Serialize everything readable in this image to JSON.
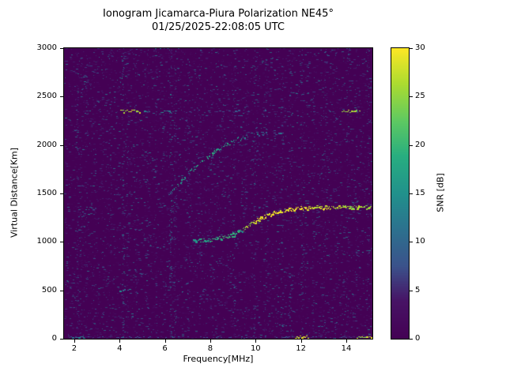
{
  "chart_data": {
    "type": "heatmap",
    "title": "Ionogram Jicamarca-Piura Polarization NE45°",
    "subtitle": "01/25/2025-22:08:05 UTC",
    "xlabel": "Frequency[MHz]",
    "ylabel": "Virtual Distance[Km]",
    "xlim": [
      1.55,
      15.15
    ],
    "ylim": [
      0,
      3000
    ],
    "xticks": [
      2,
      4,
      6,
      8,
      10,
      12,
      14
    ],
    "yticks": [
      0,
      500,
      1000,
      1500,
      2000,
      2500,
      3000
    ],
    "colorbar": {
      "label": "SNR [dB]",
      "min": 0,
      "max": 30,
      "ticks": [
        0,
        5,
        10,
        15,
        20,
        25,
        30
      ],
      "colormap": "viridis"
    },
    "background_snr": 0,
    "noise": {
      "speckle_count": 9500,
      "snr_low": 1,
      "snr_spread": 13
    },
    "noise_stripes": [
      {
        "freq": 2.15,
        "strength": 0.5
      },
      {
        "freq": 2.3,
        "strength": 0.3
      },
      {
        "freq": 2.55,
        "strength": 0.35
      },
      {
        "freq": 2.9,
        "strength": 0.25
      },
      {
        "freq": 3.25,
        "strength": 0.3
      },
      {
        "freq": 3.6,
        "strength": 0.25
      },
      {
        "freq": 4.15,
        "strength": 0.9
      },
      {
        "freq": 4.35,
        "strength": 0.5
      },
      {
        "freq": 4.7,
        "strength": 0.3
      },
      {
        "freq": 5.25,
        "strength": 0.35
      },
      {
        "freq": 5.6,
        "strength": 0.25
      },
      {
        "freq": 6.25,
        "strength": 1.0
      },
      {
        "freq": 6.45,
        "strength": 0.6
      },
      {
        "freq": 7.05,
        "strength": 0.4
      },
      {
        "freq": 7.55,
        "strength": 0.35
      },
      {
        "freq": 8.05,
        "strength": 0.3
      },
      {
        "freq": 8.55,
        "strength": 0.3
      },
      {
        "freq": 9.05,
        "strength": 0.5
      },
      {
        "freq": 9.55,
        "strength": 0.35
      },
      {
        "freq": 9.95,
        "strength": 0.5
      },
      {
        "freq": 10.45,
        "strength": 0.4
      },
      {
        "freq": 11.15,
        "strength": 0.5
      },
      {
        "freq": 11.55,
        "strength": 0.35
      },
      {
        "freq": 12.05,
        "strength": 0.5
      },
      {
        "freq": 12.55,
        "strength": 0.35
      },
      {
        "freq": 13.05,
        "strength": 0.45
      },
      {
        "freq": 13.55,
        "strength": 0.35
      },
      {
        "freq": 14.05,
        "strength": 0.4
      },
      {
        "freq": 14.45,
        "strength": 0.35
      },
      {
        "freq": 14.95,
        "strength": 0.55
      }
    ],
    "interference_lines": [
      {
        "y": 2350,
        "x1": 4.05,
        "x2": 4.95,
        "snr": 27,
        "density": 0.95
      },
      {
        "y": 2350,
        "x1": 5.1,
        "x2": 5.35,
        "snr": 12,
        "density": 0.6
      },
      {
        "y": 2350,
        "x1": 5.75,
        "x2": 6.2,
        "snr": 14,
        "density": 0.7
      },
      {
        "y": 2350,
        "x1": 6.3,
        "x2": 10.8,
        "snr": 9,
        "density": 0.25
      },
      {
        "y": 2350,
        "x1": 13.75,
        "x2": 14.6,
        "snr": 26,
        "density": 0.9
      },
      {
        "y": 2120,
        "x1": 9.7,
        "x2": 11.3,
        "snr": 10,
        "density": 0.3
      },
      {
        "y": 500,
        "x1": 4.0,
        "x2": 4.45,
        "snr": 12,
        "density": 0.6
      },
      {
        "y": 905,
        "x1": 14.35,
        "x2": 14.75,
        "snr": 11,
        "density": 0.5
      },
      {
        "y": 15,
        "x1": 11.75,
        "x2": 12.35,
        "snr": 29,
        "density": 0.95
      },
      {
        "y": 15,
        "x1": 14.4,
        "x2": 15.1,
        "snr": 27,
        "density": 0.9
      },
      {
        "y": 15,
        "x1": 1.9,
        "x2": 2.5,
        "snr": 12,
        "density": 0.5
      }
    ],
    "traces": [
      {
        "name": "one-hop-F-trace",
        "thickness": 3,
        "spread": 5,
        "density": 0.97,
        "points": [
          [
            7.25,
            1010,
            16
          ],
          [
            7.6,
            1015,
            18
          ],
          [
            7.95,
            1022,
            18
          ],
          [
            8.3,
            1032,
            20
          ],
          [
            8.6,
            1045,
            20
          ],
          [
            8.9,
            1065,
            20
          ],
          [
            9.1,
            1085,
            18
          ],
          [
            9.3,
            1110,
            20
          ],
          [
            9.5,
            1140,
            24
          ],
          [
            9.7,
            1170,
            26
          ],
          [
            9.9,
            1200,
            28
          ],
          [
            10.15,
            1235,
            29
          ],
          [
            10.45,
            1268,
            30
          ],
          [
            10.75,
            1295,
            30
          ],
          [
            11.1,
            1318,
            30
          ],
          [
            11.5,
            1335,
            30
          ],
          [
            11.9,
            1345,
            30
          ],
          [
            12.3,
            1350,
            29
          ],
          [
            12.8,
            1354,
            28
          ],
          [
            13.3,
            1357,
            27
          ],
          [
            13.8,
            1358,
            27
          ],
          [
            14.3,
            1360,
            26
          ],
          [
            14.8,
            1362,
            25
          ],
          [
            15.1,
            1362,
            24
          ]
        ]
      },
      {
        "name": "cusp-branch",
        "thickness": 2,
        "spread": 3,
        "density": 0.6,
        "points": [
          [
            9.0,
            1100,
            14
          ],
          [
            9.2,
            1125,
            15
          ],
          [
            9.4,
            1100,
            14
          ],
          [
            9.55,
            1085,
            13
          ]
        ]
      },
      {
        "name": "two-hop-trace",
        "thickness": 2,
        "spread": 5,
        "density": 0.6,
        "points": [
          [
            6.15,
            1480,
            13
          ],
          [
            6.35,
            1530,
            14
          ],
          [
            6.55,
            1585,
            15
          ],
          [
            6.8,
            1650,
            16
          ],
          [
            7.05,
            1710,
            17
          ],
          [
            7.3,
            1765,
            17
          ],
          [
            7.55,
            1815,
            18
          ],
          [
            7.8,
            1865,
            17
          ],
          [
            8.05,
            1910,
            18
          ],
          [
            8.3,
            1950,
            18
          ],
          [
            8.55,
            1985,
            17
          ],
          [
            8.8,
            2015,
            18
          ],
          [
            9.05,
            2045,
            17
          ],
          [
            9.3,
            2070,
            16
          ],
          [
            9.55,
            2090,
            15
          ],
          [
            9.8,
            2105,
            13
          ],
          [
            10.1,
            2115,
            11
          ],
          [
            10.5,
            2125,
            9
          ]
        ]
      }
    ]
  },
  "colors": {
    "background": "#ffffff",
    "axis": "#000000",
    "viridis": [
      [
        0.0,
        "#440154"
      ],
      [
        0.13,
        "#471365"
      ],
      [
        0.25,
        "#3b528b"
      ],
      [
        0.38,
        "#2c728e"
      ],
      [
        0.5,
        "#21918c"
      ],
      [
        0.63,
        "#28ae80"
      ],
      [
        0.75,
        "#5ec962"
      ],
      [
        0.88,
        "#addc30"
      ],
      [
        1.0,
        "#fde725"
      ]
    ]
  }
}
